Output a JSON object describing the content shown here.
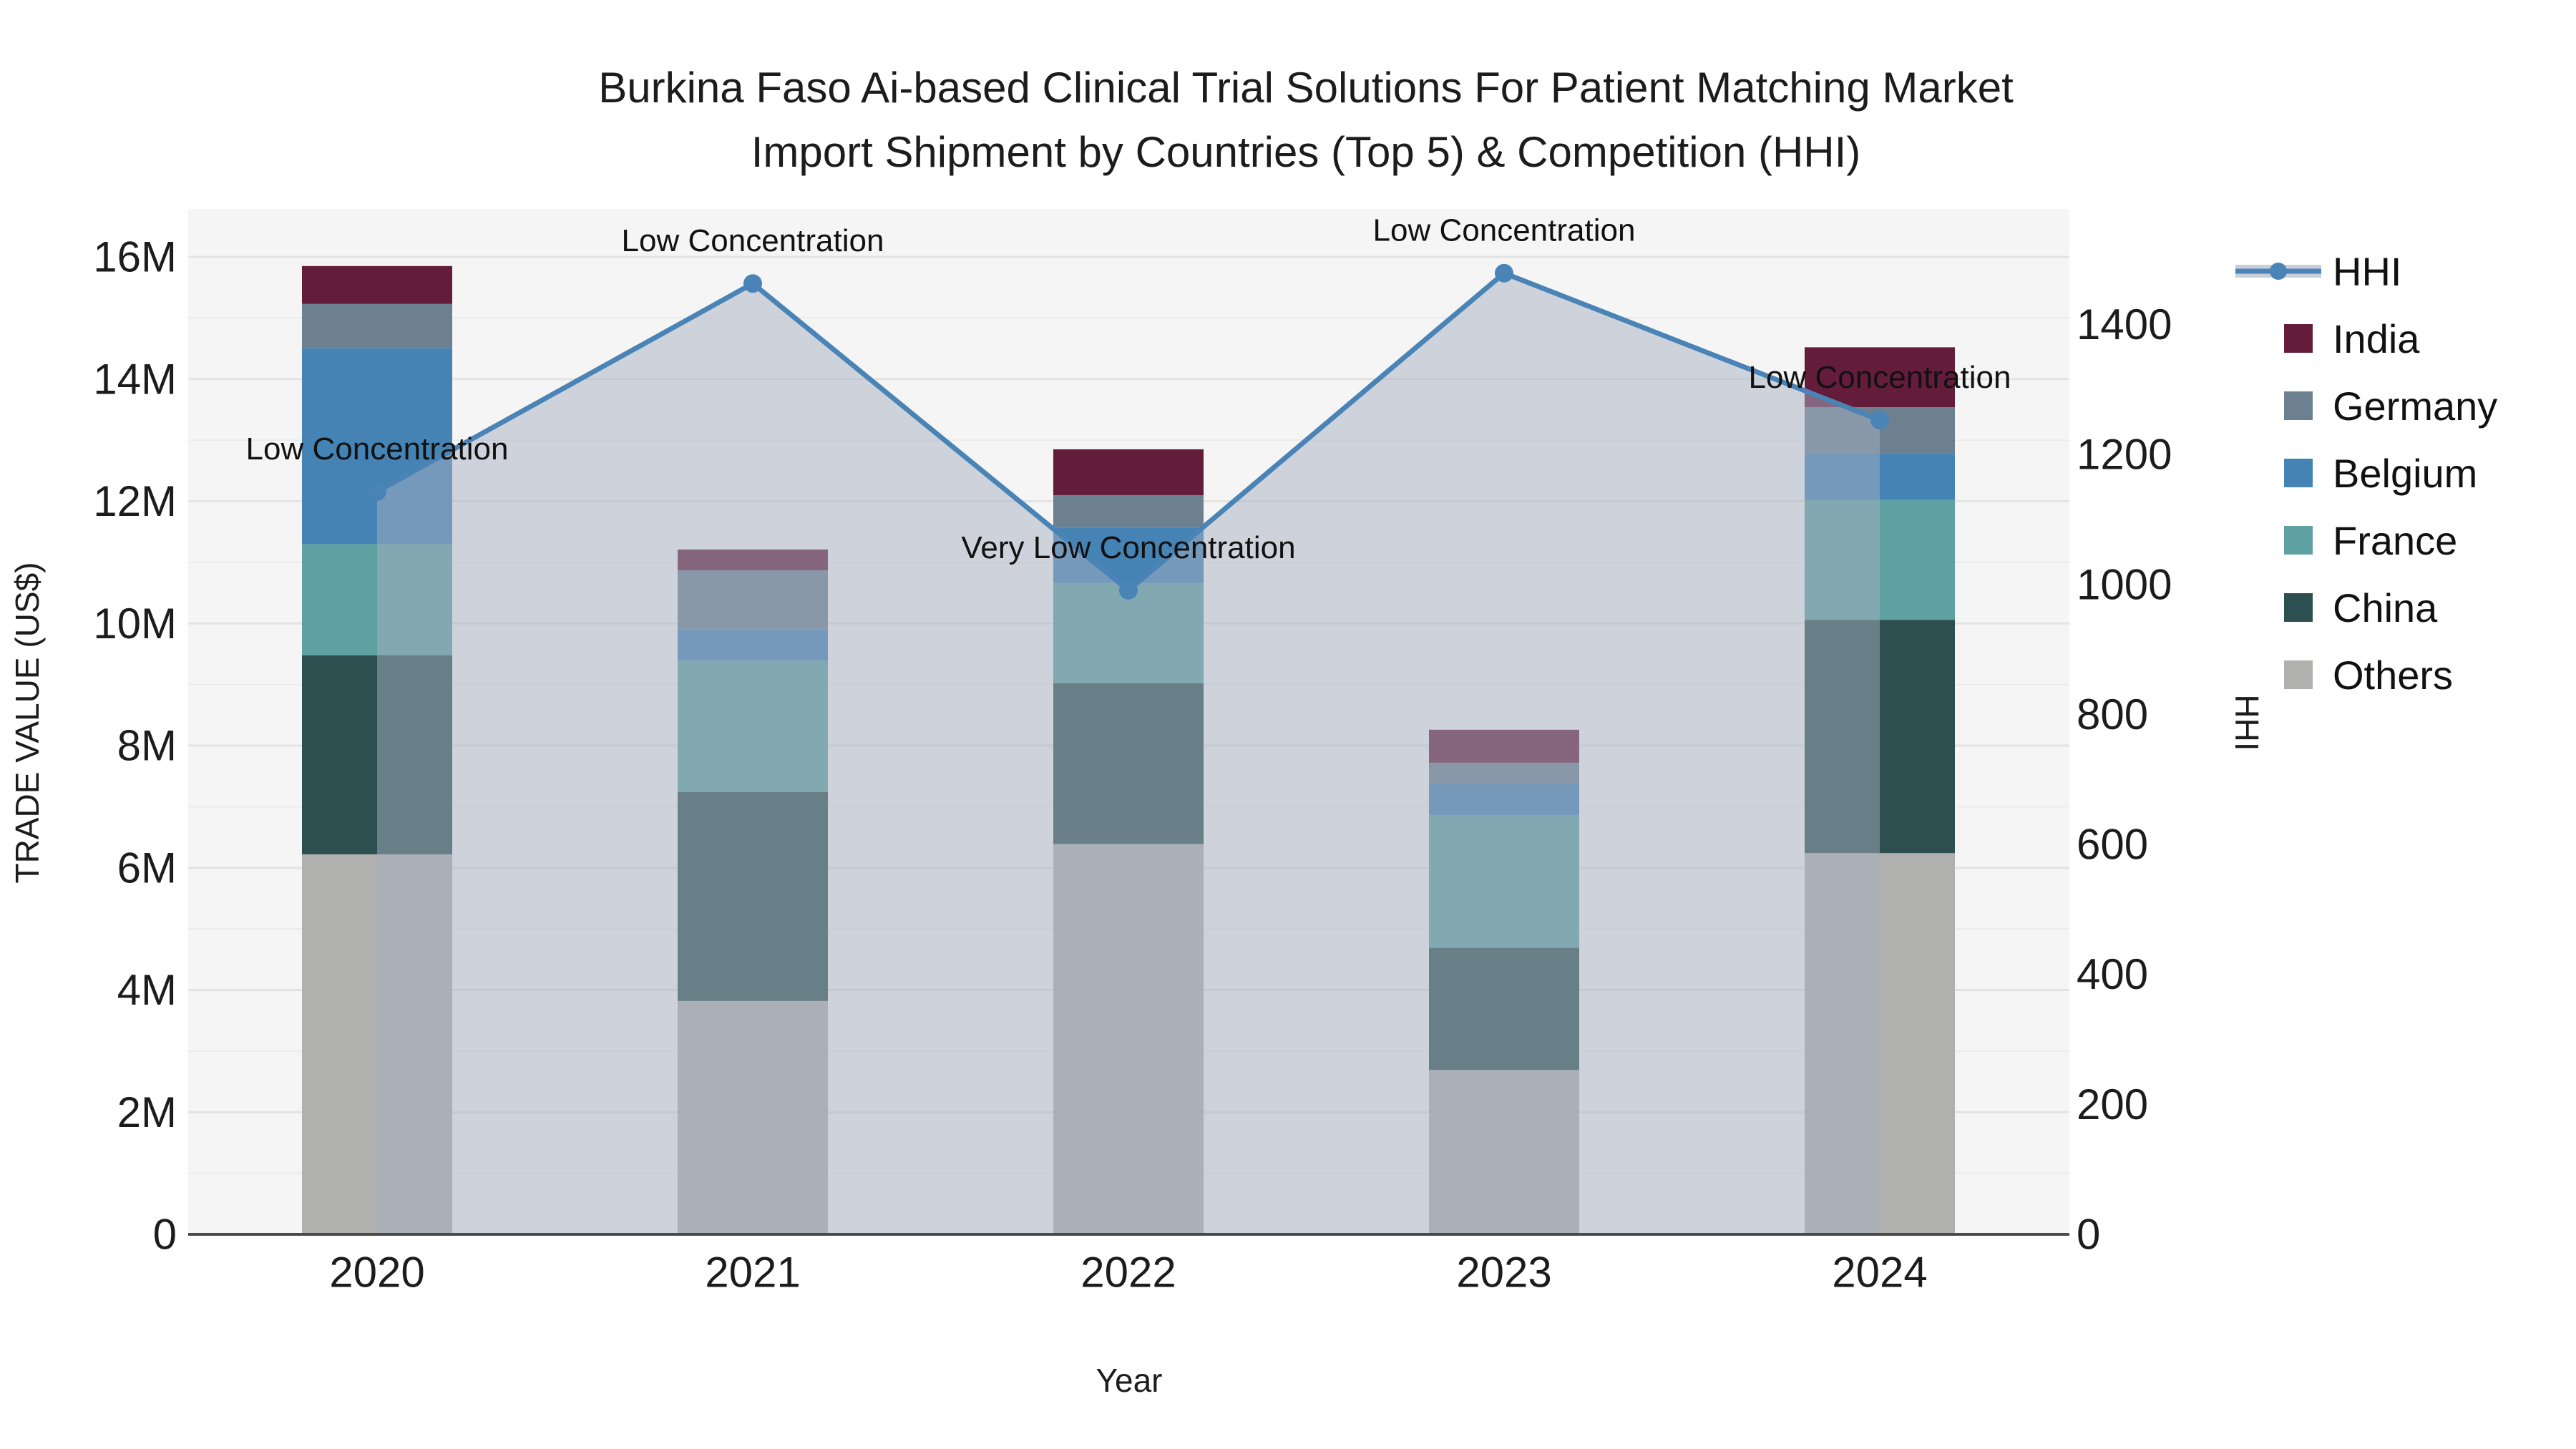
{
  "title": {
    "line1": "Burkina Faso Ai-based Clinical Trial Solutions For Patient Matching Market",
    "line2": "Import Shipment by Countries (Top 5) & Competition (HHI)"
  },
  "axes": {
    "x": {
      "title": "Year",
      "categories": [
        "2020",
        "2021",
        "2022",
        "2023",
        "2024"
      ]
    },
    "y_left": {
      "title": "TRADE VALUE (US$)",
      "tick_labels": [
        "0",
        "2M",
        "4M",
        "6M",
        "8M",
        "10M",
        "12M",
        "14M",
        "16M"
      ],
      "tick_values_millions": [
        0,
        2,
        4,
        6,
        8,
        10,
        12,
        14,
        16
      ]
    },
    "y_right": {
      "title": "HHI",
      "tick_labels": [
        "0",
        "200",
        "400",
        "600",
        "800",
        "1000",
        "1200",
        "1400"
      ],
      "tick_values": [
        0,
        200,
        400,
        600,
        800,
        1000,
        1200,
        1400
      ]
    }
  },
  "legend": [
    {
      "label": "HHI",
      "type": "line"
    },
    {
      "label": "India",
      "type": "swatch"
    },
    {
      "label": "Germany",
      "type": "swatch"
    },
    {
      "label": "Belgium",
      "type": "swatch"
    },
    {
      "label": "France",
      "type": "swatch"
    },
    {
      "label": "China",
      "type": "swatch"
    },
    {
      "label": "Others",
      "type": "swatch"
    }
  ],
  "colors": {
    "India": "#641c3b",
    "Germany": "#6d808f",
    "Belgium": "#4583b5",
    "France": "#5fa1a2",
    "China": "#2d4f4f",
    "Others": "#b0b0ae",
    "HHI": "#4a84b6",
    "area_fill": "rgba(165,175,193,0.5)",
    "legend_band": "#c9cfd9",
    "plot_bg": "#f5f5f5",
    "grid_major": "#e3e3e3",
    "grid_minor": "#ebebeb",
    "axis_line": "#4a4a4a",
    "text": "#1c1c1c"
  },
  "chart_data": {
    "type": [
      "bar-stacked",
      "line"
    ],
    "title": "Burkina Faso Ai-based Clinical Trial Solutions For Patient Matching Market Import Shipment by Countries (Top 5) & Competition (HHI)",
    "xlabel": "Year",
    "ylabel_left": "TRADE VALUE (US$)",
    "ylabel_right": "HHI",
    "categories": [
      "2020",
      "2021",
      "2022",
      "2023",
      "2024"
    ],
    "bar_value_unit": "US$ millions (left axis)",
    "series": [
      {
        "name": "Others",
        "values": [
          6.22,
          3.82,
          6.39,
          2.69,
          6.24
        ]
      },
      {
        "name": "China",
        "values": [
          3.26,
          3.42,
          2.63,
          2.0,
          3.82
        ]
      },
      {
        "name": "France",
        "values": [
          1.82,
          2.15,
          1.64,
          2.17,
          1.96
        ]
      },
      {
        "name": "Belgium",
        "values": [
          3.21,
          0.51,
          0.91,
          0.51,
          0.76
        ]
      },
      {
        "name": "Germany",
        "values": [
          0.72,
          0.97,
          0.53,
          0.35,
          0.76
        ]
      },
      {
        "name": "India",
        "values": [
          0.62,
          0.34,
          0.75,
          0.54,
          0.98
        ]
      }
    ],
    "bar_totals_millions": [
      15.85,
      11.21,
      12.85,
      8.26,
      14.52
    ],
    "line_series": {
      "name": "HHI",
      "axis": "right",
      "values": [
        1143,
        1463,
        991,
        1479,
        1253
      ]
    },
    "annotations": [
      "Low Concentration",
      "Low Concentration",
      "Very Low Concentration",
      "Low Concentration",
      "Low Concentration"
    ],
    "ylim_left_millions": [
      0,
      16
    ],
    "ylim_right": [
      0,
      1400
    ],
    "grid": true,
    "legend_position": "right"
  }
}
